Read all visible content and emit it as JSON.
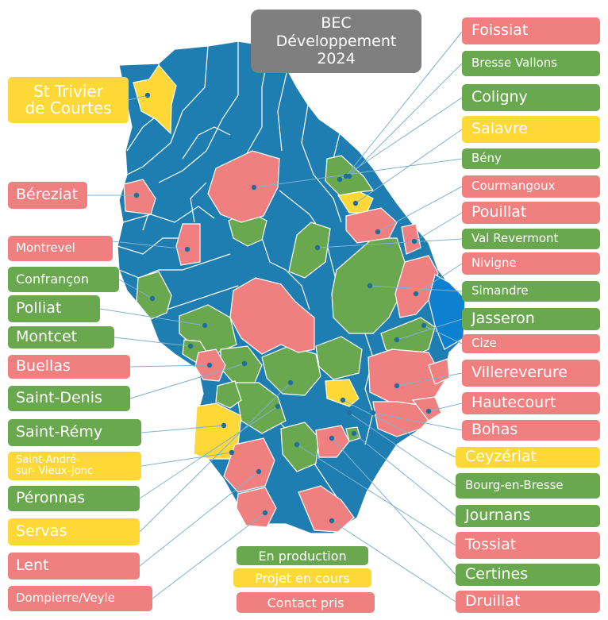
{
  "title": {
    "line1": "BEC",
    "line2": "Développement",
    "line3": "2024"
  },
  "colors": {
    "blue": "#1f7eb1",
    "pink": "#f08080",
    "green": "#6aa84f",
    "yellow": "#fdd836",
    "gray": "#7f7f7f"
  },
  "labels_left": [
    {
      "name": "St Trivier\nde Courtes",
      "status": "yellow"
    },
    {
      "name": "Béreziat",
      "status": "pink"
    },
    {
      "name": "Montrevel",
      "status": "pink"
    },
    {
      "name": "Confrançon",
      "status": "green"
    },
    {
      "name": "Polliat",
      "status": "green"
    },
    {
      "name": "Montcet",
      "status": "green"
    },
    {
      "name": "Buellas",
      "status": "pink"
    },
    {
      "name": "Saint-Denis",
      "status": "green"
    },
    {
      "name": "Saint-Rémy",
      "status": "green"
    },
    {
      "name": "Saint-André-\nsur- Vieux-Jonc",
      "status": "yellow"
    },
    {
      "name": "Péronnas",
      "status": "green"
    },
    {
      "name": "Servas",
      "status": "yellow"
    },
    {
      "name": "Lent",
      "status": "pink"
    },
    {
      "name": "Dompierre/Veyle",
      "status": "pink"
    }
  ],
  "labels_right": [
    {
      "name": "Foissiat",
      "status": "pink"
    },
    {
      "name": "Bresse Vallons",
      "status": "green"
    },
    {
      "name": "Coligny",
      "status": "green"
    },
    {
      "name": "Salavre",
      "status": "yellow"
    },
    {
      "name": "Bény",
      "status": "green"
    },
    {
      "name": "Courmangoux",
      "status": "pink"
    },
    {
      "name": "Pouillat",
      "status": "pink"
    },
    {
      "name": "Val Revermont",
      "status": "green"
    },
    {
      "name": "Nivigne",
      "status": "pink"
    },
    {
      "name": "Simandre",
      "status": "green"
    },
    {
      "name": "Jasseron",
      "status": "green"
    },
    {
      "name": "Cize",
      "status": "pink"
    },
    {
      "name": "Villereverure",
      "status": "pink"
    },
    {
      "name": "Hautecourt",
      "status": "pink"
    },
    {
      "name": "Bohas",
      "status": "pink"
    },
    {
      "name": "Ceyzériat",
      "status": "yellow"
    },
    {
      "name": "Bourg-en-Bresse",
      "status": "green"
    },
    {
      "name": "Journans",
      "status": "green"
    },
    {
      "name": "Tossiat",
      "status": "pink"
    },
    {
      "name": "Certines",
      "status": "green"
    },
    {
      "name": "Druillat",
      "status": "pink"
    }
  ],
  "legend": [
    {
      "label": "En production",
      "status": "green"
    },
    {
      "label": "Projet en cours",
      "status": "yellow"
    },
    {
      "label": "Contact pris",
      "status": "pink"
    }
  ]
}
